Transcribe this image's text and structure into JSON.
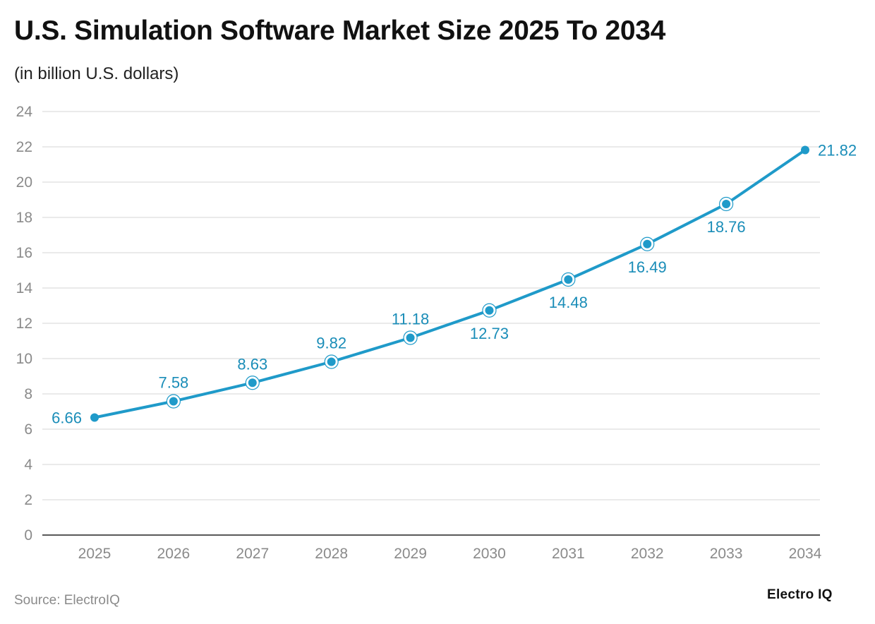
{
  "chart_data": {
    "type": "line",
    "title": "U.S. Simulation Software Market Size 2025 To 2034",
    "subtitle": "(in billion U.S. dollars)",
    "xlabel": "",
    "ylabel": "",
    "categories": [
      "2025",
      "2026",
      "2027",
      "2028",
      "2029",
      "2030",
      "2031",
      "2032",
      "2033",
      "2034"
    ],
    "series": [
      {
        "name": "Market Size",
        "values": [
          6.66,
          7.58,
          8.63,
          9.82,
          11.18,
          12.73,
          14.48,
          16.49,
          18.76,
          21.82
        ]
      }
    ],
    "data_labels": [
      "6.66",
      "7.58",
      "8.63",
      "9.82",
      "11.18",
      "12.73",
      "14.48",
      "16.49",
      "18.76",
      "21.82"
    ],
    "label_positions": [
      "left",
      "above",
      "above",
      "above",
      "above",
      "below",
      "below",
      "below",
      "below",
      "right"
    ],
    "ylim": [
      0,
      24
    ],
    "yticks": [
      0,
      2,
      4,
      6,
      8,
      10,
      12,
      14,
      16,
      18,
      20,
      22,
      24
    ],
    "grid": true,
    "line_color": "#1f9ac9",
    "label_color": "#1a8db8"
  },
  "footer": {
    "source": "Source: ElectroIQ",
    "brand": "Electro IQ"
  }
}
